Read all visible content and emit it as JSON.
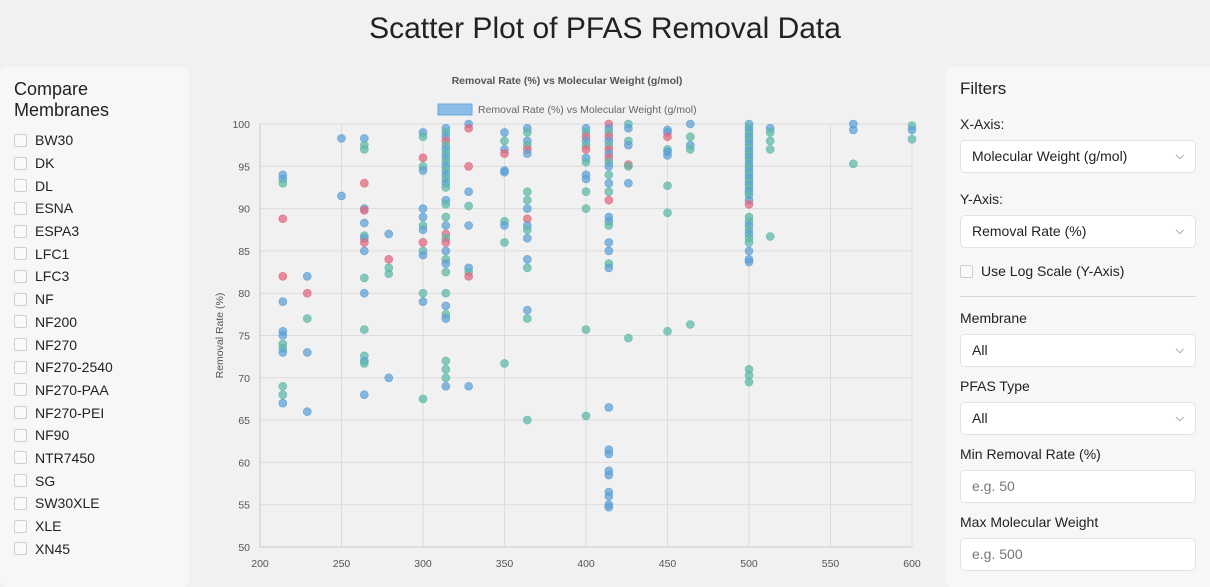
{
  "page": {
    "title": "Scatter Plot of PFAS Removal Data"
  },
  "sidebar": {
    "title": "Compare Membranes",
    "membranes": [
      "BW30",
      "DK",
      "DL",
      "ESNA",
      "ESPA3",
      "LFC1",
      "LFC3",
      "NF",
      "NF200",
      "NF270",
      "NF270-2540",
      "NF270-PAA",
      "NF270-PEI",
      "NF90",
      "NTR7450",
      "SG",
      "SW30XLE",
      "XLE",
      "XN45"
    ]
  },
  "filters": {
    "title": "Filters",
    "x_axis_label": "X-Axis:",
    "x_axis_value": "Molecular Weight (g/mol)",
    "y_axis_label": "Y-Axis:",
    "y_axis_value": "Removal Rate (%)",
    "log_scale_label": "Use Log Scale (Y-Axis)",
    "membrane_label": "Membrane",
    "membrane_value": "All",
    "pfas_type_label": "PFAS Type",
    "pfas_type_value": "All",
    "min_removal_label": "Min Removal Rate (%)",
    "min_removal_placeholder": "e.g. 50",
    "max_mw_label": "Max Molecular Weight",
    "max_mw_placeholder": "e.g. 500"
  },
  "colors": {
    "blue": "#5b9fd6",
    "teal": "#5cb8a6",
    "pink": "#e2657c",
    "legend": "#8bbde6"
  },
  "chart_data": {
    "type": "scatter",
    "title": "Removal Rate (%) vs Molecular Weight (g/mol)",
    "legend_label": "Removal Rate (%) vs Molecular Weight (g/mol)",
    "xlabel": "Molecular Weight (g/mol)",
    "ylabel": "Removal Rate (%)",
    "xlim": [
      200,
      600
    ],
    "ylim": [
      50,
      100
    ],
    "x_ticks": [
      200,
      250,
      300,
      350,
      400,
      450,
      500,
      550,
      600
    ],
    "y_ticks": [
      50,
      55,
      60,
      65,
      70,
      75,
      80,
      85,
      90,
      95,
      100
    ],
    "points": [
      [
        214,
        94,
        "b"
      ],
      [
        214,
        93.5,
        "b"
      ],
      [
        214,
        93,
        "t"
      ],
      [
        214,
        88.8,
        "p"
      ],
      [
        214,
        82,
        "p"
      ],
      [
        214,
        79,
        "b"
      ],
      [
        214,
        75.5,
        "b"
      ],
      [
        214,
        75,
        "b"
      ],
      [
        214,
        74,
        "t"
      ],
      [
        214,
        73.5,
        "t"
      ],
      [
        214,
        73,
        "b"
      ],
      [
        214,
        69,
        "t"
      ],
      [
        214,
        68,
        "t"
      ],
      [
        214,
        67,
        "b"
      ],
      [
        229,
        82,
        "b"
      ],
      [
        229,
        80,
        "p"
      ],
      [
        229,
        77,
        "t"
      ],
      [
        229,
        73,
        "b"
      ],
      [
        229,
        66,
        "b"
      ],
      [
        250,
        98.3,
        "b"
      ],
      [
        250,
        91.5,
        "b"
      ],
      [
        264,
        98.3,
        "b"
      ],
      [
        264,
        97.5,
        "t"
      ],
      [
        264,
        97,
        "t"
      ],
      [
        264,
        93,
        "p"
      ],
      [
        264,
        90,
        "b"
      ],
      [
        264,
        89.8,
        "p"
      ],
      [
        264,
        88.3,
        "b"
      ],
      [
        264,
        86.8,
        "t"
      ],
      [
        264,
        86.5,
        "b"
      ],
      [
        264,
        86,
        "p"
      ],
      [
        264,
        85,
        "b"
      ],
      [
        264,
        81.8,
        "t"
      ],
      [
        264,
        80,
        "b"
      ],
      [
        264,
        75.7,
        "t"
      ],
      [
        264,
        72.6,
        "t"
      ],
      [
        264,
        72,
        "b"
      ],
      [
        264,
        71.7,
        "t"
      ],
      [
        264,
        68,
        "b"
      ],
      [
        279,
        87,
        "b"
      ],
      [
        279,
        84,
        "p"
      ],
      [
        279,
        83,
        "t"
      ],
      [
        279,
        82.3,
        "t"
      ],
      [
        279,
        70,
        "b"
      ],
      [
        300,
        99,
        "b"
      ],
      [
        300,
        98.5,
        "t"
      ],
      [
        300,
        96,
        "p"
      ],
      [
        300,
        95,
        "t"
      ],
      [
        300,
        94.5,
        "b"
      ],
      [
        300,
        90,
        "b"
      ],
      [
        300,
        89,
        "b"
      ],
      [
        300,
        88,
        "t"
      ],
      [
        300,
        87.5,
        "b"
      ],
      [
        300,
        86,
        "p"
      ],
      [
        300,
        85,
        "t"
      ],
      [
        300,
        84.5,
        "b"
      ],
      [
        300,
        80,
        "t"
      ],
      [
        300,
        79,
        "b"
      ],
      [
        300,
        67.5,
        "t"
      ],
      [
        314,
        99.5,
        "b"
      ],
      [
        314,
        99,
        "t"
      ],
      [
        314,
        98.5,
        "b"
      ],
      [
        314,
        98,
        "p"
      ],
      [
        314,
        97.5,
        "t"
      ],
      [
        314,
        97,
        "b"
      ],
      [
        314,
        96.5,
        "t"
      ],
      [
        314,
        96,
        "b"
      ],
      [
        314,
        95.5,
        "t"
      ],
      [
        314,
        95,
        "b"
      ],
      [
        314,
        94.5,
        "t"
      ],
      [
        314,
        94,
        "b"
      ],
      [
        314,
        93.5,
        "t"
      ],
      [
        314,
        93,
        "b"
      ],
      [
        314,
        92.5,
        "t"
      ],
      [
        314,
        91,
        "b"
      ],
      [
        314,
        90.5,
        "t"
      ],
      [
        314,
        89,
        "t"
      ],
      [
        314,
        88,
        "b"
      ],
      [
        314,
        87,
        "p"
      ],
      [
        314,
        86.5,
        "t"
      ],
      [
        314,
        86,
        "p"
      ],
      [
        314,
        85,
        "b"
      ],
      [
        314,
        84,
        "t"
      ],
      [
        314,
        83.5,
        "b"
      ],
      [
        314,
        82.5,
        "t"
      ],
      [
        314,
        80,
        "t"
      ],
      [
        314,
        78.5,
        "b"
      ],
      [
        314,
        77.5,
        "t"
      ],
      [
        314,
        77,
        "b"
      ],
      [
        314,
        72,
        "t"
      ],
      [
        314,
        71,
        "t"
      ],
      [
        314,
        70,
        "t"
      ],
      [
        314,
        69,
        "b"
      ],
      [
        328,
        100,
        "b"
      ],
      [
        328,
        99.5,
        "p"
      ],
      [
        328,
        95,
        "p"
      ],
      [
        328,
        92,
        "b"
      ],
      [
        328,
        90.3,
        "t"
      ],
      [
        328,
        88,
        "b"
      ],
      [
        328,
        83,
        "b"
      ],
      [
        328,
        82.5,
        "t"
      ],
      [
        328,
        82,
        "p"
      ],
      [
        328,
        69,
        "b"
      ],
      [
        350,
        99,
        "b"
      ],
      [
        350,
        98,
        "t"
      ],
      [
        350,
        97,
        "b"
      ],
      [
        350,
        96.5,
        "p"
      ],
      [
        350,
        94.5,
        "b"
      ],
      [
        350,
        94.3,
        "b"
      ],
      [
        350,
        88.5,
        "t"
      ],
      [
        350,
        88,
        "b"
      ],
      [
        350,
        86,
        "t"
      ],
      [
        350,
        71.7,
        "t"
      ],
      [
        364,
        99.5,
        "b"
      ],
      [
        364,
        99,
        "t"
      ],
      [
        364,
        98,
        "b"
      ],
      [
        364,
        97.5,
        "t"
      ],
      [
        364,
        97,
        "p"
      ],
      [
        364,
        96.5,
        "b"
      ],
      [
        364,
        92,
        "t"
      ],
      [
        364,
        91,
        "t"
      ],
      [
        364,
        90,
        "b"
      ],
      [
        364,
        88.8,
        "p"
      ],
      [
        364,
        88,
        "b"
      ],
      [
        364,
        87.5,
        "t"
      ],
      [
        364,
        86.5,
        "b"
      ],
      [
        364,
        84,
        "b"
      ],
      [
        364,
        83,
        "t"
      ],
      [
        364,
        78,
        "b"
      ],
      [
        364,
        77,
        "t"
      ],
      [
        364,
        65,
        "t"
      ],
      [
        400,
        99.5,
        "b"
      ],
      [
        400,
        99,
        "t"
      ],
      [
        400,
        98.5,
        "p"
      ],
      [
        400,
        98,
        "b"
      ],
      [
        400,
        97.5,
        "t"
      ],
      [
        400,
        97,
        "p"
      ],
      [
        400,
        96,
        "b"
      ],
      [
        400,
        95.5,
        "t"
      ],
      [
        400,
        94,
        "b"
      ],
      [
        400,
        93.5,
        "b"
      ],
      [
        400,
        92,
        "t"
      ],
      [
        400,
        90,
        "t"
      ],
      [
        400,
        75.7,
        "t"
      ],
      [
        400,
        65.5,
        "t"
      ],
      [
        414,
        100,
        "p"
      ],
      [
        414,
        99.5,
        "b"
      ],
      [
        414,
        99,
        "t"
      ],
      [
        414,
        98.5,
        "p"
      ],
      [
        414,
        98,
        "b"
      ],
      [
        414,
        97.5,
        "t"
      ],
      [
        414,
        97,
        "p"
      ],
      [
        414,
        96.5,
        "b"
      ],
      [
        414,
        96,
        "p"
      ],
      [
        414,
        95.5,
        "t"
      ],
      [
        414,
        95,
        "b"
      ],
      [
        414,
        94,
        "t"
      ],
      [
        414,
        93,
        "b"
      ],
      [
        414,
        92,
        "t"
      ],
      [
        414,
        91,
        "p"
      ],
      [
        414,
        89,
        "b"
      ],
      [
        414,
        88.5,
        "b"
      ],
      [
        414,
        88,
        "t"
      ],
      [
        414,
        86,
        "b"
      ],
      [
        414,
        85,
        "b"
      ],
      [
        414,
        83.5,
        "t"
      ],
      [
        414,
        83,
        "b"
      ],
      [
        414,
        66.5,
        "b"
      ],
      [
        414,
        61.5,
        "b"
      ],
      [
        414,
        61,
        "b"
      ],
      [
        414,
        59,
        "b"
      ],
      [
        414,
        58.5,
        "b"
      ],
      [
        414,
        56.5,
        "b"
      ],
      [
        414,
        56,
        "b"
      ],
      [
        414,
        55,
        "b"
      ],
      [
        414,
        54.7,
        "b"
      ],
      [
        426,
        100,
        "t"
      ],
      [
        426,
        99.5,
        "b"
      ],
      [
        426,
        98,
        "t"
      ],
      [
        426,
        97.5,
        "b"
      ],
      [
        426,
        95.2,
        "p"
      ],
      [
        426,
        95,
        "t"
      ],
      [
        426,
        93,
        "b"
      ],
      [
        426,
        74.7,
        "t"
      ],
      [
        450,
        99.3,
        "b"
      ],
      [
        450,
        99,
        "b"
      ],
      [
        450,
        98.5,
        "p"
      ],
      [
        450,
        97,
        "t"
      ],
      [
        450,
        96.7,
        "b"
      ],
      [
        450,
        96.3,
        "b"
      ],
      [
        450,
        92.7,
        "t"
      ],
      [
        450,
        89.5,
        "t"
      ],
      [
        450,
        75.5,
        "t"
      ],
      [
        464,
        100,
        "b"
      ],
      [
        464,
        98.5,
        "t"
      ],
      [
        464,
        97.5,
        "b"
      ],
      [
        464,
        97,
        "t"
      ],
      [
        464,
        76.3,
        "t"
      ],
      [
        500,
        100,
        "b"
      ],
      [
        500,
        99.6,
        "t"
      ],
      [
        500,
        99.2,
        "b"
      ],
      [
        500,
        98.8,
        "t"
      ],
      [
        500,
        98.4,
        "b"
      ],
      [
        500,
        98,
        "t"
      ],
      [
        500,
        97.6,
        "b"
      ],
      [
        500,
        97.2,
        "t"
      ],
      [
        500,
        96.8,
        "b"
      ],
      [
        500,
        96.4,
        "t"
      ],
      [
        500,
        96,
        "b"
      ],
      [
        500,
        95.6,
        "t"
      ],
      [
        500,
        95.2,
        "b"
      ],
      [
        500,
        94.8,
        "t"
      ],
      [
        500,
        94.4,
        "b"
      ],
      [
        500,
        94,
        "t"
      ],
      [
        500,
        93.6,
        "b"
      ],
      [
        500,
        93.2,
        "t"
      ],
      [
        500,
        92.8,
        "b"
      ],
      [
        500,
        92.4,
        "t"
      ],
      [
        500,
        92,
        "b"
      ],
      [
        500,
        91.6,
        "t"
      ],
      [
        500,
        91,
        "b"
      ],
      [
        500,
        90.5,
        "p"
      ],
      [
        500,
        89,
        "t"
      ],
      [
        500,
        88.5,
        "t"
      ],
      [
        500,
        88,
        "b"
      ],
      [
        500,
        87.5,
        "t"
      ],
      [
        500,
        87,
        "b"
      ],
      [
        500,
        86.5,
        "t"
      ],
      [
        500,
        86,
        "t"
      ],
      [
        500,
        85,
        "b"
      ],
      [
        500,
        84,
        "b"
      ],
      [
        500,
        83.7,
        "b"
      ],
      [
        500,
        71,
        "t"
      ],
      [
        500,
        70.3,
        "t"
      ],
      [
        500,
        69.5,
        "t"
      ],
      [
        513,
        99.5,
        "b"
      ],
      [
        513,
        99,
        "t"
      ],
      [
        513,
        98,
        "t"
      ],
      [
        513,
        97,
        "t"
      ],
      [
        513,
        86.7,
        "t"
      ],
      [
        564,
        100,
        "b"
      ],
      [
        564,
        99.3,
        "b"
      ],
      [
        564,
        95.3,
        "t"
      ],
      [
        600,
        99.8,
        "t"
      ],
      [
        600,
        99.3,
        "b"
      ],
      [
        600,
        98.2,
        "t"
      ]
    ]
  }
}
